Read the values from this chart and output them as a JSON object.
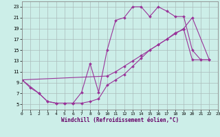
{
  "xlabel": "Windchill (Refroidissement éolien,°C)",
  "bg_color": "#cceee8",
  "line_color": "#993399",
  "grid_color": "#aabbbb",
  "xlim": [
    0,
    23
  ],
  "ylim": [
    4,
    24
  ],
  "yticks": [
    5,
    7,
    9,
    11,
    13,
    15,
    17,
    19,
    21,
    23
  ],
  "xticks": [
    0,
    1,
    2,
    3,
    4,
    5,
    6,
    7,
    8,
    9,
    10,
    11,
    12,
    13,
    14,
    15,
    16,
    17,
    18,
    19,
    20,
    21,
    22,
    23
  ],
  "line1_x": [
    0,
    1,
    2,
    3,
    4,
    5,
    6,
    7,
    8,
    9,
    10,
    11,
    12,
    13,
    14,
    15,
    16,
    17,
    18,
    19,
    20,
    21,
    22
  ],
  "line1_y": [
    9.5,
    8.0,
    7.0,
    5.5,
    5.2,
    5.2,
    5.2,
    7.2,
    12.5,
    7.2,
    15.0,
    20.5,
    21.0,
    23.0,
    23.0,
    21.2,
    23.0,
    22.2,
    21.2,
    21.2,
    15.0,
    13.2,
    13.2
  ],
  "line2_x": [
    0,
    10,
    11,
    12,
    13,
    14,
    15,
    16,
    17,
    18,
    19,
    20,
    22
  ],
  "line2_y": [
    9.5,
    10.2,
    11.0,
    12.0,
    13.0,
    14.0,
    15.0,
    16.0,
    17.0,
    18.0,
    19.0,
    21.0,
    13.2
  ],
  "line3_x": [
    0,
    2,
    3,
    4,
    5,
    6,
    7,
    8,
    9,
    10,
    11,
    12,
    13,
    14,
    15,
    16,
    17,
    18,
    19,
    20,
    21,
    22
  ],
  "line3_y": [
    9.5,
    7.0,
    5.5,
    5.2,
    5.2,
    5.2,
    5.2,
    5.5,
    6.0,
    8.5,
    9.5,
    10.5,
    12.0,
    13.5,
    15.0,
    16.0,
    17.0,
    18.2,
    18.8,
    13.2,
    13.2,
    13.2
  ]
}
